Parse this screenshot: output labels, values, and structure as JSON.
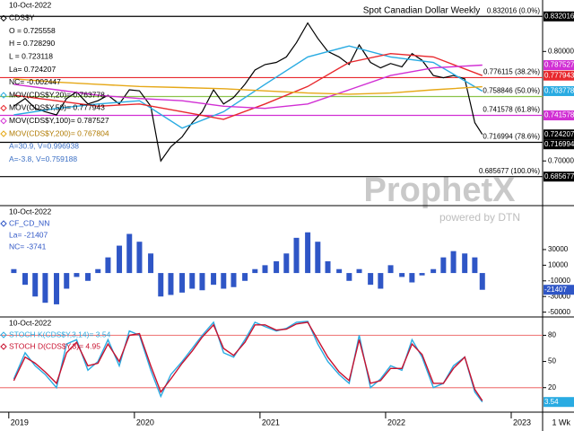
{
  "chart_data": [
    {
      "type": "line",
      "title": "Spot Canadian Dollar Weekly",
      "date": "10-Oct-2022",
      "info": [
        "O = 0.725558",
        "H = 0.728290",
        "L = 0.723118",
        "La= 0.724207",
        "NC= -0.002447"
      ],
      "cursor_info": [
        "A=30.9, V=0.996938",
        "A=-3.8, V=0.759188"
      ],
      "x": [
        2019.04,
        2019.13,
        2019.21,
        2019.29,
        2019.38,
        2019.46,
        2019.54,
        2019.63,
        2019.71,
        2019.79,
        2019.88,
        2019.96,
        2020.04,
        2020.13,
        2020.21,
        2020.29,
        2020.38,
        2020.46,
        2020.54,
        2020.63,
        2020.71,
        2020.79,
        2020.88,
        2020.96,
        2021.04,
        2021.13,
        2021.21,
        2021.29,
        2021.38,
        2021.46,
        2021.54,
        2021.63,
        2021.71,
        2021.79,
        2021.88,
        2021.96,
        2022.04,
        2022.13,
        2022.21,
        2022.29,
        2022.38,
        2022.46,
        2022.54,
        2022.63,
        2022.71,
        2022.77
      ],
      "series": [
        {
          "name": "CDS$Y",
          "color": "#000000",
          "values": [
            0.75,
            0.757,
            0.748,
            0.745,
            0.742,
            0.757,
            0.763,
            0.752,
            0.755,
            0.76,
            0.752,
            0.765,
            0.764,
            0.75,
            0.7,
            0.713,
            0.722,
            0.735,
            0.745,
            0.765,
            0.752,
            0.758,
            0.77,
            0.783,
            0.788,
            0.79,
            0.795,
            0.808,
            0.826,
            0.812,
            0.8,
            0.795,
            0.788,
            0.806,
            0.79,
            0.785,
            0.789,
            0.786,
            0.798,
            0.792,
            0.778,
            0.776,
            0.778,
            0.775,
            0.735,
            0.724207
          ]
        },
        {
          "name": "MOV(CDS$Y,20)= 0.763778",
          "color": "#29abe2",
          "x": [
            2019.04,
            2019.38,
            2019.71,
            2020.04,
            2020.38,
            2020.71,
            2021.04,
            2021.38,
            2021.71,
            2022.04,
            2022.38,
            2022.77
          ],
          "values": [
            0.742,
            0.748,
            0.752,
            0.755,
            0.73,
            0.745,
            0.77,
            0.795,
            0.805,
            0.795,
            0.79,
            0.763778
          ]
        },
        {
          "name": "MOV(CDS$Y,50)= 0.777943",
          "color": "#e8282d",
          "x": [
            2019.04,
            2019.38,
            2019.71,
            2020.04,
            2020.38,
            2020.71,
            2021.04,
            2021.38,
            2021.71,
            2022.04,
            2022.38,
            2022.77
          ],
          "values": [
            0.76,
            0.755,
            0.75,
            0.752,
            0.745,
            0.738,
            0.752,
            0.768,
            0.79,
            0.798,
            0.795,
            0.777943
          ]
        },
        {
          "name": "MOV(CDS$Y,100)= 0.787527",
          "color": "#d12fd4",
          "x": [
            2019.04,
            2019.38,
            2019.71,
            2020.04,
            2020.38,
            2020.71,
            2021.04,
            2021.38,
            2021.71,
            2022.04,
            2022.38,
            2022.77
          ],
          "values": [
            0.77,
            0.765,
            0.76,
            0.757,
            0.755,
            0.75,
            0.748,
            0.752,
            0.765,
            0.778,
            0.785,
            0.787527
          ]
        },
        {
          "name": "MOV(CDS$Y,200)= 0.767804",
          "color": "#e6a817",
          "x": [
            2019.04,
            2019.38,
            2019.71,
            2020.04,
            2020.38,
            2020.71,
            2021.04,
            2021.38,
            2021.71,
            2022.04,
            2022.38,
            2022.77
          ],
          "values": [
            0.775,
            0.772,
            0.77,
            0.768,
            0.767,
            0.766,
            0.764,
            0.762,
            0.761,
            0.762,
            0.765,
            0.767804
          ]
        }
      ],
      "ylim": [
        0.66,
        0.847
      ],
      "yticks": [
        {
          "value": 0.7,
          "label": "0.700000"
        },
        {
          "value": 0.8,
          "label": "0.800000"
        }
      ],
      "levels": [
        {
          "value": 0.832016,
          "label": "0.832016 (0.0%)"
        },
        {
          "value": 0.776115,
          "label": "0.776115 (38.2%)"
        },
        {
          "value": 0.758846,
          "label": "0.758846 (50.0%)"
        },
        {
          "value": 0.741578,
          "label": "0.741578 (61.8%)"
        },
        {
          "value": 0.716994,
          "label": "0.716994 (78.6%)"
        },
        {
          "value": 0.685677,
          "label": "0.685677 (100.0%)"
        }
      ],
      "level_colors": [
        "#000000",
        "#e8282d",
        "#8bc34a",
        "#d12fd4",
        "#000000",
        "#000000"
      ],
      "flags": [
        0.832016,
        0.787527,
        0.777943,
        0.763778,
        0.741578,
        0.724207,
        0.716994,
        0.685677
      ],
      "flag_colors": [
        "#000000",
        "#d12fd4",
        "#e8282d",
        "#29abe2",
        "#d12fd4",
        "#000000",
        "#000000",
        "#000000"
      ],
      "watermark": {
        "brand": "ProphetX",
        "tagline": "powered by DTN"
      }
    },
    {
      "type": "bar",
      "date": "10-Oct-2022",
      "info": [
        "La= -21407",
        "NC= -3741"
      ],
      "x": [
        2019.04,
        2019.13,
        2019.21,
        2019.29,
        2019.38,
        2019.46,
        2019.54,
        2019.63,
        2019.71,
        2019.79,
        2019.88,
        2019.96,
        2020.04,
        2020.13,
        2020.21,
        2020.29,
        2020.38,
        2020.46,
        2020.54,
        2020.63,
        2020.71,
        2020.79,
        2020.88,
        2020.96,
        2021.04,
        2021.13,
        2021.21,
        2021.29,
        2021.38,
        2021.46,
        2021.54,
        2021.63,
        2021.71,
        2021.79,
        2021.88,
        2021.96,
        2022.04,
        2022.13,
        2022.21,
        2022.29,
        2022.38,
        2022.46,
        2022.54,
        2022.63,
        2022.71,
        2022.77
      ],
      "series": [
        {
          "name": "CF_CD_NN",
          "color": "#2f56c6",
          "values": [
            5000,
            -15000,
            -30000,
            -38000,
            -40000,
            -20000,
            -5000,
            -10000,
            5000,
            20000,
            35000,
            50000,
            40000,
            25000,
            -30000,
            -28000,
            -25000,
            -20000,
            -22000,
            -15000,
            -20000,
            -18000,
            -10000,
            5000,
            10000,
            15000,
            25000,
            45000,
            52000,
            40000,
            15000,
            5000,
            -10000,
            5000,
            -15000,
            -20000,
            10000,
            -5000,
            -12000,
            -3000,
            5000,
            20000,
            28000,
            25000,
            20000,
            -21407
          ]
        }
      ],
      "ylim": [
        -55000,
        85000
      ],
      "yticks": [
        30000,
        10000,
        -10000,
        -30000,
        -50000
      ],
      "flags": [
        -21407
      ],
      "flag_colors": [
        "#2f56c6"
      ]
    },
    {
      "type": "line",
      "date": "10-Oct-2022",
      "x": [
        2019.04,
        2019.13,
        2019.21,
        2019.29,
        2019.38,
        2019.46,
        2019.54,
        2019.63,
        2019.71,
        2019.79,
        2019.88,
        2019.96,
        2020.04,
        2020.13,
        2020.21,
        2020.29,
        2020.38,
        2020.46,
        2020.54,
        2020.63,
        2020.71,
        2020.79,
        2020.88,
        2020.96,
        2021.04,
        2021.13,
        2021.21,
        2021.29,
        2021.38,
        2021.46,
        2021.54,
        2021.63,
        2021.71,
        2021.79,
        2021.88,
        2021.96,
        2022.04,
        2022.13,
        2022.21,
        2022.29,
        2022.38,
        2022.46,
        2022.54,
        2022.63,
        2022.71,
        2022.77
      ],
      "series": [
        {
          "name": "STOCH K(CDS$Y,3,14)= 3.54",
          "color": "#29abe2",
          "values": [
            30,
            60,
            45,
            35,
            20,
            70,
            75,
            40,
            50,
            75,
            45,
            85,
            80,
            40,
            10,
            35,
            50,
            65,
            80,
            95,
            60,
            55,
            75,
            95,
            90,
            85,
            88,
            95,
            96,
            70,
            50,
            35,
            25,
            80,
            20,
            30,
            45,
            40,
            75,
            55,
            20,
            25,
            45,
            55,
            15,
            3.54
          ]
        },
        {
          "name": "STOCH D(CDS$Y,3)= 4.95",
          "color": "#c8102e",
          "values": [
            28,
            55,
            48,
            38,
            25,
            60,
            72,
            45,
            48,
            70,
            50,
            80,
            82,
            45,
            15,
            30,
            48,
            62,
            78,
            92,
            65,
            57,
            72,
            92,
            92,
            86,
            87,
            93,
            95,
            75,
            55,
            38,
            28,
            75,
            25,
            28,
            42,
            42,
            70,
            58,
            25,
            25,
            42,
            55,
            18,
            4.95
          ]
        }
      ],
      "ylim": [
        -5,
        100
      ],
      "yticks": [
        80,
        50,
        20
      ],
      "hlines": [
        80,
        20
      ],
      "hline_color": "#f08080",
      "flags": [
        3.54
      ],
      "flag_colors": [
        "#29abe2"
      ],
      "xlim": [
        2018.93,
        2023.25
      ],
      "xticks": [
        2019,
        2020,
        2021,
        2022,
        2023
      ],
      "x_unit_label": "1 Wk"
    }
  ]
}
